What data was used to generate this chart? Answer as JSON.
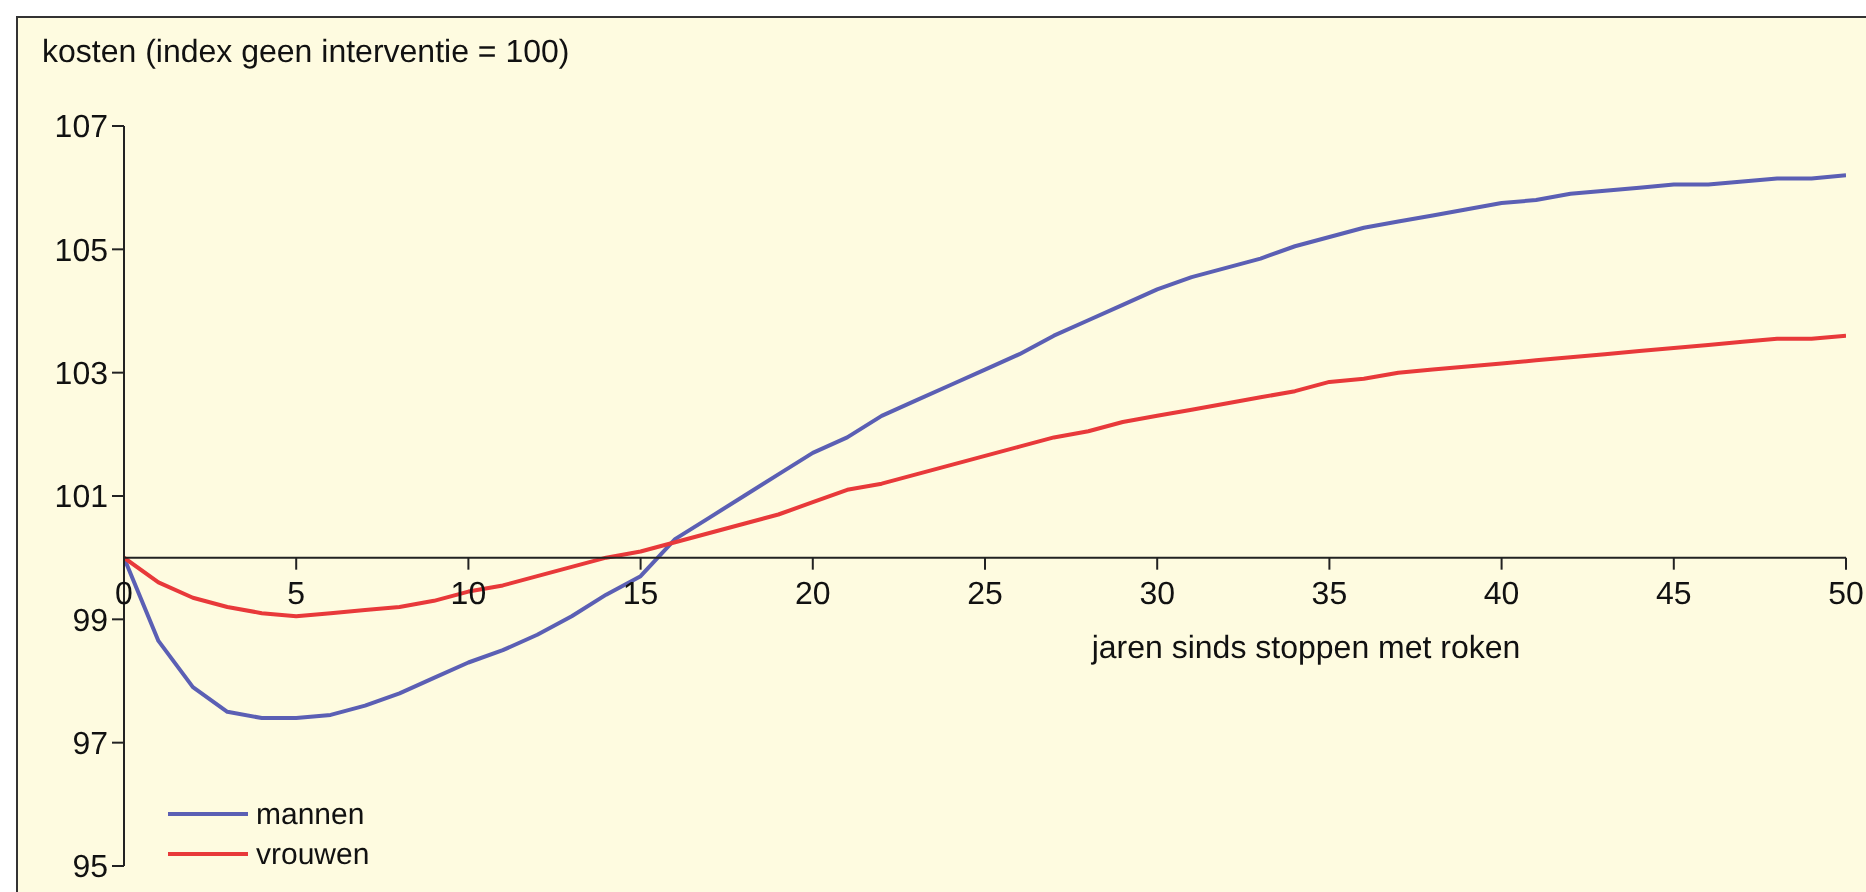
{
  "chart_data": {
    "type": "line",
    "ylabel": "kosten (index geen interventie = 100)",
    "xlabel": "jaren sinds stoppen met roken",
    "x": [
      0,
      1,
      2,
      3,
      4,
      5,
      6,
      7,
      8,
      9,
      10,
      11,
      12,
      13,
      14,
      15,
      16,
      17,
      18,
      19,
      20,
      21,
      22,
      23,
      24,
      25,
      26,
      27,
      28,
      29,
      30,
      31,
      32,
      33,
      34,
      35,
      36,
      37,
      38,
      39,
      40,
      41,
      42,
      43,
      44,
      45,
      46,
      47,
      48,
      49,
      50
    ],
    "series": [
      {
        "name": "mannen",
        "color": "#5b5fb4",
        "values": [
          100,
          98.65,
          97.9,
          97.5,
          97.4,
          97.4,
          97.45,
          97.6,
          97.8,
          98.05,
          98.3,
          98.5,
          98.75,
          99.05,
          99.4,
          99.7,
          100.3,
          100.65,
          101.0,
          101.35,
          101.7,
          101.95,
          102.3,
          102.55,
          102.8,
          103.05,
          103.3,
          103.6,
          103.85,
          104.1,
          104.35,
          104.55,
          104.7,
          104.85,
          105.05,
          105.2,
          105.35,
          105.45,
          105.55,
          105.65,
          105.75,
          105.8,
          105.9,
          105.95,
          106.0,
          106.05,
          106.05,
          106.1,
          106.15,
          106.15,
          106.2
        ]
      },
      {
        "name": "vrouwen",
        "color": "#e8393a",
        "values": [
          100,
          99.6,
          99.35,
          99.2,
          99.1,
          99.05,
          99.1,
          99.15,
          99.2,
          99.3,
          99.45,
          99.55,
          99.7,
          99.85,
          100.0,
          100.1,
          100.25,
          100.4,
          100.55,
          100.7,
          100.9,
          101.1,
          101.2,
          101.35,
          101.5,
          101.65,
          101.8,
          101.95,
          102.05,
          102.2,
          102.3,
          102.4,
          102.5,
          102.6,
          102.7,
          102.85,
          102.9,
          103.0,
          103.05,
          103.1,
          103.15,
          103.2,
          103.25,
          103.3,
          103.35,
          103.4,
          103.45,
          103.5,
          103.55,
          103.55,
          103.6
        ]
      }
    ],
    "xlim": [
      0,
      50
    ],
    "xticks": [
      0,
      5,
      10,
      15,
      20,
      25,
      30,
      35,
      40,
      45,
      50
    ],
    "ylim": [
      95,
      107
    ],
    "yticks": [
      95,
      97,
      99,
      101,
      103,
      105,
      107
    ],
    "grid": false,
    "legend": "bottom left",
    "marker": "none",
    "line_style": "solid"
  }
}
